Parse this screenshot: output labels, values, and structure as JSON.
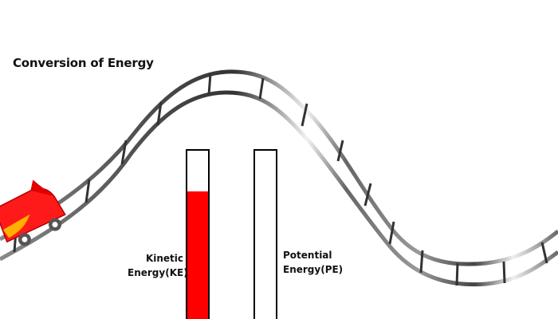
{
  "title": "Conversion of Energy",
  "bars": {
    "kinetic": {
      "label_line1": "Kinetic",
      "label_line2": "Energy(KE)",
      "fill_fraction": 0.76,
      "color": "#ff0000"
    },
    "potential": {
      "label_line1": "Potential",
      "label_line2": "Energy(PE)",
      "fill_fraction": 0,
      "color": "#ff0000"
    }
  },
  "cart": {
    "body_color": "#ff1a1a",
    "stripe_color": "#ffb000",
    "wheel_color": "#555555"
  },
  "track": {
    "rail_color": "#555555",
    "highlight_color": "#f2f2f2"
  }
}
